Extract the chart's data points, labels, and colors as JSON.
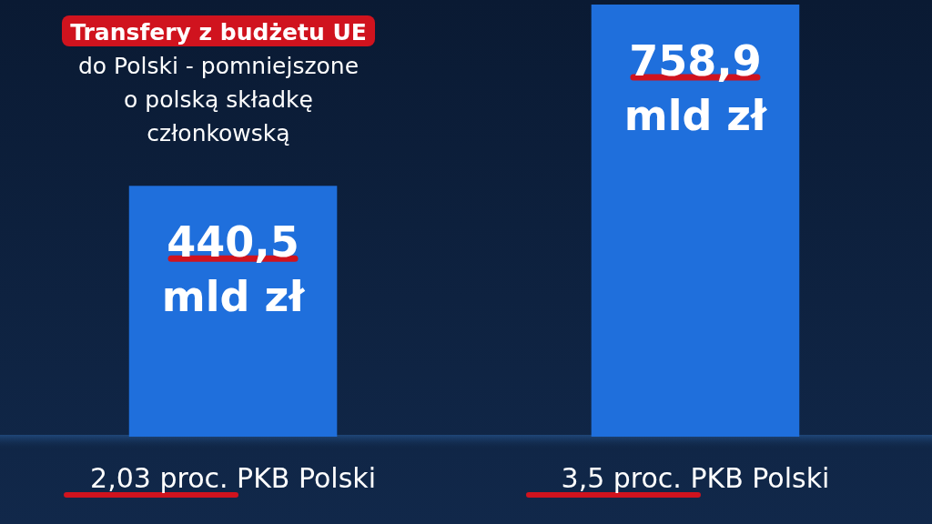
{
  "chart_data": {
    "type": "bar",
    "title": "Transfery z budżetu UE do Polski - pomniejszone o polską składkę członkowską",
    "categories": [
      "2,03 proc. PKB Polski",
      "3,5 proc. PKB Polski"
    ],
    "values": [
      440.5,
      758.9
    ],
    "value_labels": [
      "440,5 mld zł",
      "758,9 mld zł"
    ],
    "color": "#1f6fdc"
  }
}
